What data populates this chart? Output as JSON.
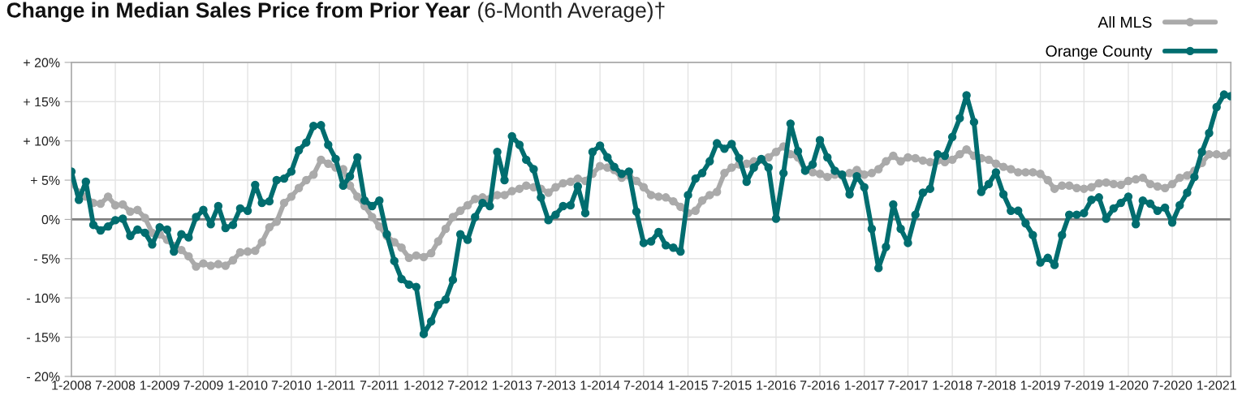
{
  "chart_data": {
    "type": "line",
    "title": "Change in Median Sales Price from Prior Year",
    "subtitle": "(6-Month Average)†",
    "x": [
      "2008-01",
      "2008-02",
      "2008-03",
      "2008-04",
      "2008-05",
      "2008-06",
      "2008-07",
      "2008-08",
      "2008-09",
      "2008-10",
      "2008-11",
      "2008-12",
      "2009-01",
      "2009-02",
      "2009-03",
      "2009-04",
      "2009-05",
      "2009-06",
      "2009-07",
      "2009-08",
      "2009-09",
      "2009-10",
      "2009-11",
      "2009-12",
      "2010-01",
      "2010-02",
      "2010-03",
      "2010-04",
      "2010-05",
      "2010-06",
      "2010-07",
      "2010-08",
      "2010-09",
      "2010-10",
      "2010-11",
      "2010-12",
      "2011-01",
      "2011-02",
      "2011-03",
      "2011-04",
      "2011-05",
      "2011-06",
      "2011-07",
      "2011-08",
      "2011-09",
      "2011-10",
      "2011-11",
      "2011-12",
      "2012-01",
      "2012-02",
      "2012-03",
      "2012-04",
      "2012-05",
      "2012-06",
      "2012-07",
      "2012-08",
      "2012-09",
      "2012-10",
      "2012-11",
      "2012-12",
      "2013-01",
      "2013-02",
      "2013-03",
      "2013-04",
      "2013-05",
      "2013-06",
      "2013-07",
      "2013-08",
      "2013-09",
      "2013-10",
      "2013-11",
      "2013-12",
      "2014-01",
      "2014-02",
      "2014-03",
      "2014-04",
      "2014-05",
      "2014-06",
      "2014-07",
      "2014-08",
      "2014-09",
      "2014-10",
      "2014-11",
      "2014-12",
      "2015-01",
      "2015-02",
      "2015-03",
      "2015-04",
      "2015-05",
      "2015-06",
      "2015-07",
      "2015-08",
      "2015-09",
      "2015-10",
      "2015-11",
      "2015-12",
      "2016-01",
      "2016-02",
      "2016-03",
      "2016-04",
      "2016-05",
      "2016-06",
      "2016-07",
      "2016-08",
      "2016-09",
      "2016-10",
      "2016-11",
      "2016-12",
      "2017-01",
      "2017-02",
      "2017-03",
      "2017-04",
      "2017-05",
      "2017-06",
      "2017-07",
      "2017-08",
      "2017-09",
      "2017-10",
      "2017-11",
      "2017-12",
      "2018-01",
      "2018-02",
      "2018-03",
      "2018-04",
      "2018-05",
      "2018-06",
      "2018-07",
      "2018-08",
      "2018-09",
      "2018-10",
      "2018-11",
      "2018-12",
      "2019-01",
      "2019-02",
      "2019-03",
      "2019-04",
      "2019-05",
      "2019-06",
      "2019-07",
      "2019-08",
      "2019-09",
      "2019-10",
      "2019-11",
      "2019-12",
      "2020-01",
      "2020-02",
      "2020-03",
      "2020-04",
      "2020-05",
      "2020-06",
      "2020-07",
      "2020-08",
      "2020-09",
      "2020-10",
      "2020-11",
      "2020-12",
      "2021-01",
      "2021-02",
      "2021-03"
    ],
    "series": [
      {
        "name": "All MLS",
        "color": "#aaaaaa",
        "values": [
          4.7,
          3.4,
          2.9,
          2.1,
          2.0,
          2.9,
          1.8,
          1.9,
          1.0,
          1.2,
          0.2,
          -1.7,
          -1.9,
          -2.6,
          -3.4,
          -3.9,
          -4.7,
          -6.0,
          -5.6,
          -5.9,
          -5.7,
          -5.9,
          -5.2,
          -4.2,
          -4.1,
          -4.0,
          -2.9,
          -1.0,
          -0.3,
          2.1,
          2.9,
          4.0,
          5.0,
          5.7,
          7.6,
          7.1,
          6.6,
          6.4,
          4.3,
          2.9,
          1.7,
          0.3,
          -0.9,
          -2.1,
          -2.9,
          -3.6,
          -4.9,
          -4.6,
          -4.8,
          -4.3,
          -2.8,
          -1.2,
          0.3,
          1.1,
          1.8,
          2.6,
          2.8,
          2.6,
          3.1,
          3.1,
          3.6,
          3.9,
          4.3,
          4.1,
          3.9,
          3.4,
          4.1,
          4.6,
          4.8,
          5.2,
          4.9,
          5.8,
          6.8,
          6.6,
          6.3,
          5.3,
          5.6,
          4.9,
          4.1,
          3.1,
          2.9,
          2.8,
          2.3,
          1.6,
          0.8,
          1.1,
          2.4,
          3.1,
          3.5,
          5.9,
          6.6,
          7.0,
          7.1,
          7.4,
          7.6,
          7.9,
          8.6,
          9.3,
          8.3,
          7.9,
          6.3,
          6.0,
          5.8,
          5.4,
          5.7,
          5.6,
          5.9,
          6.3,
          5.7,
          5.9,
          6.4,
          7.4,
          8.1,
          7.4,
          7.9,
          7.8,
          7.5,
          7.3,
          7.5,
          7.3,
          7.6,
          8.3,
          8.9,
          8.1,
          7.8,
          7.6,
          7.1,
          6.7,
          6.4,
          6.0,
          6.0,
          6.0,
          5.8,
          5.0,
          3.9,
          4.3,
          4.3,
          4.0,
          3.9,
          4.1,
          4.6,
          4.7,
          4.5,
          4.4,
          4.9,
          5.1,
          5.3,
          4.5,
          4.2,
          4.0,
          4.5,
          5.3,
          5.6,
          6.2,
          7.2,
          8.3,
          8.3,
          8.1,
          8.5
        ]
      },
      {
        "name": "Orange County",
        "color": "#006d6f",
        "values": [
          6.1,
          2.5,
          4.8,
          -0.7,
          -1.4,
          -0.9,
          -0.1,
          0.1,
          -2.1,
          -1.3,
          -1.7,
          -3.2,
          -1.0,
          -1.3,
          -4.1,
          -1.9,
          -2.3,
          0.3,
          1.2,
          -0.6,
          1.7,
          -1.1,
          -0.7,
          1.4,
          1.1,
          4.4,
          2.1,
          2.3,
          5.0,
          5.2,
          6.1,
          8.8,
          9.8,
          11.9,
          12.0,
          9.5,
          7.7,
          4.3,
          5.5,
          7.9,
          2.4,
          1.7,
          2.4,
          -1.9,
          -5.3,
          -7.6,
          -8.3,
          -8.6,
          -14.6,
          -13.0,
          -10.9,
          -10.2,
          -7.7,
          -1.9,
          -2.6,
          0.3,
          2.1,
          1.7,
          8.6,
          5.0,
          10.6,
          9.5,
          7.6,
          6.4,
          2.8,
          -0.1,
          0.6,
          1.7,
          1.8,
          4.2,
          0.8,
          8.6,
          9.4,
          7.9,
          6.7,
          5.8,
          6.1,
          1.0,
          -3.0,
          -2.8,
          -1.6,
          -3.3,
          -3.6,
          -4.1,
          3.1,
          5.2,
          5.9,
          7.4,
          9.7,
          9.0,
          9.6,
          7.8,
          4.8,
          6.6,
          7.7,
          6.6,
          0.1,
          5.9,
          12.2,
          8.7,
          6.2,
          7.0,
          10.1,
          7.9,
          6.2,
          5.7,
          3.2,
          5.5,
          4.1,
          -1.2,
          -6.2,
          -3.5,
          1.9,
          -1.2,
          -3.0,
          0.6,
          3.4,
          3.9,
          8.3,
          8.1,
          10.5,
          12.9,
          15.8,
          12.4,
          3.5,
          4.5,
          6.0,
          3.2,
          1.1,
          1.1,
          -0.5,
          -2.0,
          -5.5,
          -4.9,
          -5.8,
          -2.0,
          0.6,
          0.6,
          0.8,
          2.5,
          2.8,
          0.1,
          1.4,
          2.1,
          2.9,
          -0.6,
          2.4,
          2.0,
          1.1,
          1.5,
          -0.4,
          1.8,
          3.4,
          5.4,
          8.6,
          11.0,
          14.3,
          15.9,
          15.7
        ]
      }
    ],
    "xlim": [
      "2008-01",
      "2021-03"
    ],
    "xticks": [
      {
        "value": "2008-01",
        "label": "1-2008"
      },
      {
        "value": "2008-07",
        "label": "7-2008"
      },
      {
        "value": "2009-01",
        "label": "1-2009"
      },
      {
        "value": "2009-07",
        "label": "7-2009"
      },
      {
        "value": "2010-01",
        "label": "1-2010"
      },
      {
        "value": "2010-07",
        "label": "7-2010"
      },
      {
        "value": "2011-01",
        "label": "1-2011"
      },
      {
        "value": "2011-07",
        "label": "7-2011"
      },
      {
        "value": "2012-01",
        "label": "1-2012"
      },
      {
        "value": "2012-07",
        "label": "7-2012"
      },
      {
        "value": "2013-01",
        "label": "1-2013"
      },
      {
        "value": "2013-07",
        "label": "7-2013"
      },
      {
        "value": "2014-01",
        "label": "1-2014"
      },
      {
        "value": "2014-07",
        "label": "7-2014"
      },
      {
        "value": "2015-01",
        "label": "1-2015"
      },
      {
        "value": "2015-07",
        "label": "7-2015"
      },
      {
        "value": "2016-01",
        "label": "1-2016"
      },
      {
        "value": "2016-07",
        "label": "7-2016"
      },
      {
        "value": "2017-01",
        "label": "1-2017"
      },
      {
        "value": "2017-07",
        "label": "7-2017"
      },
      {
        "value": "2018-01",
        "label": "1-2018"
      },
      {
        "value": "2018-07",
        "label": "7-2018"
      },
      {
        "value": "2019-01",
        "label": "1-2019"
      },
      {
        "value": "2019-07",
        "label": "7-2019"
      },
      {
        "value": "2020-01",
        "label": "1-2020"
      },
      {
        "value": "2020-07",
        "label": "7-2020"
      },
      {
        "value": "2021-01",
        "label": "1-2021"
      }
    ],
    "ylim": [
      -20,
      20
    ],
    "yticks": [
      {
        "value": -20,
        "label": "- 20%"
      },
      {
        "value": -15,
        "label": "- 15%"
      },
      {
        "value": -10,
        "label": "- 10%"
      },
      {
        "value": -5,
        "label": "- 5%"
      },
      {
        "value": 0,
        "label": "0%"
      },
      {
        "value": 5,
        "label": "+ 5%"
      },
      {
        "value": 10,
        "label": "+ 10%"
      },
      {
        "value": 15,
        "label": "+ 15%"
      },
      {
        "value": 20,
        "label": "+ 20%"
      }
    ],
    "ref_lines": [
      {
        "axis": "y",
        "value": 0,
        "color": "#7f7f7f",
        "line_style": "solid"
      }
    ],
    "grid": true,
    "legend": "top right",
    "marker": "circle",
    "line_style": "solid"
  }
}
